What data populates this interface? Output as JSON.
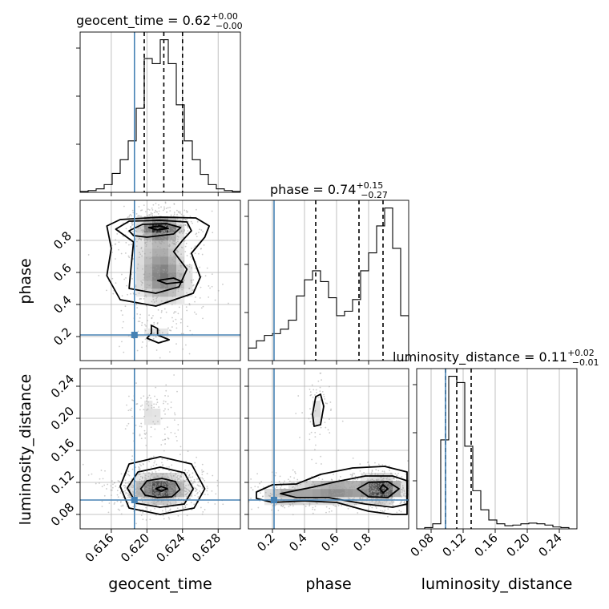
{
  "chart_data": {
    "type": "corner",
    "parameters": [
      "geocent_time",
      "phase",
      "luminosity_distance"
    ],
    "truths": {
      "geocent_time": 0.6186,
      "phase": 0.21,
      "luminosity_distance": 0.098
    },
    "ranges": {
      "geocent_time": [
        0.6125,
        0.6305
      ],
      "phase": [
        0.05,
        1.05
      ],
      "luminosity_distance": [
        0.062,
        0.262
      ]
    },
    "axis_labels": {
      "geocent_time": "geocent_time",
      "phase": "phase",
      "luminosity_distance": "luminosity_distance"
    },
    "ticks": {
      "geocent_time": [
        "0.616",
        "0.620",
        "0.624",
        "0.628"
      ],
      "phase": [
        "0.2",
        "0.4",
        "0.6",
        "0.8"
      ],
      "luminosity_distance": [
        "0.08",
        "0.12",
        "0.16",
        "0.20",
        "0.24"
      ]
    },
    "titles": [
      {
        "param": "geocent_time",
        "main": "geocent_time = 0.62",
        "sup": "+0.00",
        "sub": "−0.00"
      },
      {
        "param": "phase",
        "main": "phase = 0.74",
        "sup": "+0.15",
        "sub": "−0.27"
      },
      {
        "param": "luminosity_distance",
        "main": "luminosity_distance = 0.11",
        "sup": "+0.02",
        "sub": "−0.01"
      }
    ],
    "quantiles": {
      "geocent_time": [
        0.6197,
        0.6219,
        0.624
      ],
      "phase": [
        0.47,
        0.74,
        0.89
      ],
      "luminosity_distance": [
        0.098,
        0.112,
        0.13
      ]
    },
    "histograms": {
      "geocent_time": {
        "edges": [
          0.6125,
          0.6134,
          0.6143,
          0.6152,
          0.6161,
          0.617,
          0.6179,
          0.6188,
          0.6197,
          0.6206,
          0.6215,
          0.6224,
          0.6233,
          0.6242,
          0.6251,
          0.626,
          0.6269,
          0.6278,
          0.6287,
          0.6296,
          0.6305
        ],
        "counts": [
          1,
          2,
          4,
          9,
          22,
          38,
          60,
          98,
          156,
          150,
          178,
          150,
          102,
          60,
          38,
          21,
          9,
          4,
          2,
          1
        ]
      },
      "phase": {
        "edges": [
          0.05,
          0.1,
          0.15,
          0.2,
          0.25,
          0.3,
          0.35,
          0.4,
          0.45,
          0.5,
          0.55,
          0.6,
          0.65,
          0.7,
          0.75,
          0.8,
          0.85,
          0.9,
          0.95,
          1.0,
          1.05
        ],
        "counts": [
          14,
          22,
          28,
          30,
          35,
          45,
          72,
          90,
          100,
          88,
          70,
          50,
          55,
          68,
          100,
          120,
          150,
          170,
          125,
          50
        ]
      },
      "luminosity_distance": {
        "edges": [
          0.062,
          0.072,
          0.082,
          0.092,
          0.102,
          0.112,
          0.122,
          0.132,
          0.142,
          0.152,
          0.162,
          0.172,
          0.182,
          0.192,
          0.202,
          0.212,
          0.222,
          0.232,
          0.242,
          0.252,
          0.262
        ],
        "counts": [
          0,
          2,
          8,
          140,
          240,
          230,
          130,
          60,
          30,
          14,
          8,
          5,
          6,
          8,
          9,
          8,
          6,
          3,
          2,
          0
        ]
      }
    },
    "contours": {
      "phase|geocent_time": [
        [
          [
            0.6155,
            0.89
          ],
          [
            0.617,
            0.93
          ],
          [
            0.6215,
            0.945
          ],
          [
            0.6255,
            0.94
          ],
          [
            0.627,
            0.89
          ],
          [
            0.6265,
            0.82
          ],
          [
            0.625,
            0.72
          ],
          [
            0.626,
            0.57
          ],
          [
            0.6252,
            0.47
          ],
          [
            0.621,
            0.39
          ],
          [
            0.617,
            0.43
          ],
          [
            0.6155,
            0.58
          ],
          [
            0.616,
            0.75
          ]
        ],
        [
          [
            0.6165,
            0.87
          ],
          [
            0.618,
            0.92
          ],
          [
            0.6215,
            0.925
          ],
          [
            0.6245,
            0.915
          ],
          [
            0.625,
            0.86
          ],
          [
            0.624,
            0.8
          ],
          [
            0.623,
            0.73
          ],
          [
            0.6245,
            0.62
          ],
          [
            0.6236,
            0.51
          ],
          [
            0.621,
            0.47
          ],
          [
            0.618,
            0.5
          ],
          [
            0.6182,
            0.62
          ],
          [
            0.6185,
            0.79
          ]
        ],
        [
          [
            0.618,
            0.86
          ],
          [
            0.6195,
            0.9
          ],
          [
            0.6222,
            0.905
          ],
          [
            0.6238,
            0.88
          ],
          [
            0.623,
            0.84
          ],
          [
            0.62,
            0.82
          ],
          [
            0.6185,
            0.83
          ]
        ],
        [
          [
            0.6202,
            0.88
          ],
          [
            0.6214,
            0.89
          ],
          [
            0.6224,
            0.875
          ],
          [
            0.6212,
            0.865
          ]
        ],
        [
          [
            0.6212,
            0.55
          ],
          [
            0.623,
            0.565
          ],
          [
            0.624,
            0.54
          ],
          [
            0.6222,
            0.53
          ]
        ],
        [
          [
            0.6205,
            0.27
          ],
          [
            0.6212,
            0.25
          ],
          [
            0.6212,
            0.21
          ],
          [
            0.6225,
            0.18
          ],
          [
            0.6213,
            0.16
          ],
          [
            0.62,
            0.19
          ],
          [
            0.6205,
            0.22
          ]
        ]
      ],
      "luminosity_distance|geocent_time": [
        [
          [
            0.617,
            0.115
          ],
          [
            0.618,
            0.143
          ],
          [
            0.6215,
            0.152
          ],
          [
            0.625,
            0.143
          ],
          [
            0.6265,
            0.112
          ],
          [
            0.6253,
            0.088
          ],
          [
            0.6215,
            0.08
          ],
          [
            0.618,
            0.088
          ]
        ],
        [
          [
            0.6178,
            0.113
          ],
          [
            0.619,
            0.133
          ],
          [
            0.6215,
            0.139
          ],
          [
            0.6242,
            0.132
          ],
          [
            0.6252,
            0.112
          ],
          [
            0.6242,
            0.093
          ],
          [
            0.6215,
            0.089
          ],
          [
            0.6188,
            0.094
          ]
        ],
        [
          [
            0.6193,
            0.112
          ],
          [
            0.62,
            0.122
          ],
          [
            0.6217,
            0.125
          ],
          [
            0.6232,
            0.121
          ],
          [
            0.6237,
            0.111
          ],
          [
            0.6228,
            0.102
          ],
          [
            0.6212,
            0.101
          ],
          [
            0.6198,
            0.104
          ]
        ],
        [
          [
            0.621,
            0.112
          ],
          [
            0.6216,
            0.115
          ],
          [
            0.6223,
            0.112
          ],
          [
            0.6216,
            0.109
          ]
        ]
      ],
      "luminosity_distance|phase": [
        [
          [
            0.1,
            0.108
          ],
          [
            0.2,
            0.117
          ],
          [
            0.35,
            0.118
          ],
          [
            0.5,
            0.13
          ],
          [
            0.7,
            0.138
          ],
          [
            0.9,
            0.14
          ],
          [
            1.04,
            0.133
          ],
          [
            1.04,
            0.08
          ],
          [
            0.95,
            0.08
          ],
          [
            0.8,
            0.084
          ],
          [
            0.6,
            0.095
          ],
          [
            0.4,
            0.097
          ],
          [
            0.2,
            0.095
          ],
          [
            0.1,
            0.1
          ]
        ],
        [
          [
            0.25,
            0.106
          ],
          [
            0.45,
            0.114
          ],
          [
            0.6,
            0.121
          ],
          [
            0.78,
            0.128
          ],
          [
            0.95,
            0.128
          ],
          [
            1.04,
            0.122
          ],
          [
            1.04,
            0.093
          ],
          [
            0.95,
            0.089
          ],
          [
            0.78,
            0.093
          ],
          [
            0.55,
            0.101
          ],
          [
            0.35,
            0.101
          ]
        ],
        [
          [
            0.73,
            0.112
          ],
          [
            0.8,
            0.12
          ],
          [
            0.92,
            0.121
          ],
          [
            0.99,
            0.112
          ],
          [
            0.92,
            0.101
          ],
          [
            0.8,
            0.102
          ]
        ],
        [
          [
            0.87,
            0.112
          ],
          [
            0.89,
            0.117
          ],
          [
            0.92,
            0.112
          ],
          [
            0.89,
            0.107
          ]
        ],
        [
          [
            0.45,
            0.205
          ],
          [
            0.47,
            0.227
          ],
          [
            0.5,
            0.23
          ],
          [
            0.52,
            0.215
          ],
          [
            0.5,
            0.192
          ],
          [
            0.46,
            0.19
          ]
        ]
      ]
    },
    "density_peaks": {
      "phase|geocent_time": [
        {
          "x": 0.6215,
          "y": 0.88,
          "w": 1.0,
          "sx": 0.0012,
          "sy": 0.04
        },
        {
          "x": 0.622,
          "y": 0.55,
          "w": 0.45,
          "sx": 0.0016,
          "sy": 0.08
        },
        {
          "x": 0.6215,
          "y": 0.7,
          "w": 0.35,
          "sx": 0.0015,
          "sy": 0.12
        },
        {
          "x": 0.6212,
          "y": 0.22,
          "w": 0.12,
          "sx": 0.0012,
          "sy": 0.04
        }
      ],
      "luminosity_distance|geocent_time": [
        {
          "x": 0.6215,
          "y": 0.112,
          "w": 1.0,
          "sx": 0.0016,
          "sy": 0.009
        },
        {
          "x": 0.6205,
          "y": 0.205,
          "w": 0.12,
          "sx": 0.0012,
          "sy": 0.015
        }
      ],
      "luminosity_distance|phase": [
        {
          "x": 0.88,
          "y": 0.112,
          "w": 1.0,
          "sx": 0.07,
          "sy": 0.008
        },
        {
          "x": 0.6,
          "y": 0.11,
          "w": 0.55,
          "sx": 0.15,
          "sy": 0.008
        },
        {
          "x": 0.3,
          "y": 0.104,
          "w": 0.35,
          "sx": 0.1,
          "sy": 0.006
        },
        {
          "x": 0.48,
          "y": 0.21,
          "w": 0.15,
          "sx": 0.03,
          "sy": 0.015
        }
      ]
    },
    "colors": {
      "truth": "#4682b4",
      "line": "#000000",
      "grid": "#b0b0b0",
      "samples": "#a0a0a0"
    },
    "grid": true
  }
}
